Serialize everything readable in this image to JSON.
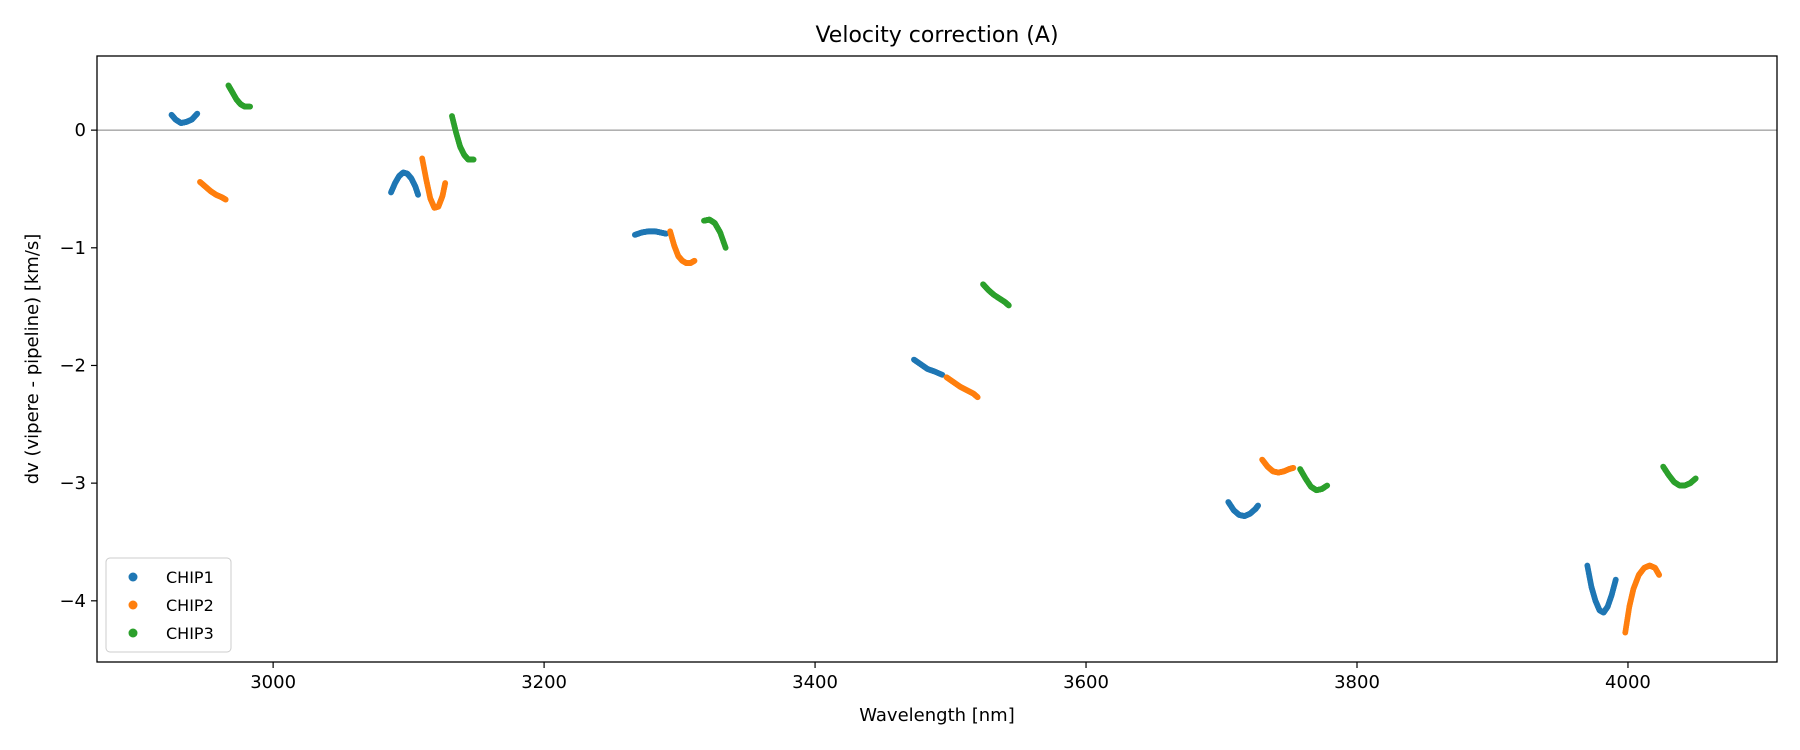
{
  "chart_data": {
    "type": "scatter",
    "title": "Velocity correction (A)",
    "xlabel": "Wavelength [nm]",
    "ylabel": "dv (vipere - pipeline) [km/s]",
    "xlim": [
      2870,
      4110
    ],
    "ylim": [
      -4.52,
      0.63
    ],
    "xticks": [
      3000,
      3200,
      3400,
      3600,
      3800,
      4000
    ],
    "yticks": [
      0,
      -1,
      -2,
      -3,
      -4
    ],
    "xtick_labels": [
      "3000",
      "3200",
      "3400",
      "3600",
      "3800",
      "4000"
    ],
    "ytick_labels": [
      "0",
      "−1",
      "−2",
      "−3",
      "−4"
    ],
    "reference_line_y": 0,
    "legend_position": "lower-left",
    "series": [
      {
        "name": "CHIP1",
        "color": "#1f77b4",
        "segments": [
          {
            "x": [
              2925,
              2928,
              2932,
              2936,
              2940,
              2944
            ],
            "y": [
              0.13,
              0.09,
              0.06,
              0.07,
              0.09,
              0.14
            ]
          },
          {
            "x": [
              3087,
              3090,
              3093,
              3096,
              3099,
              3102,
              3105,
              3107
            ],
            "y": [
              -0.53,
              -0.45,
              -0.39,
              -0.36,
              -0.37,
              -0.41,
              -0.48,
              -0.55
            ]
          },
          {
            "x": [
              3267,
              3272,
              3277,
              3282,
              3286,
              3290
            ],
            "y": [
              -0.89,
              -0.87,
              -0.86,
              -0.86,
              -0.87,
              -0.88
            ]
          },
          {
            "x": [
              3473,
              3478,
              3483,
              3488,
              3494
            ],
            "y": [
              -1.95,
              -1.99,
              -2.03,
              -2.05,
              -2.08
            ]
          },
          {
            "x": [
              3705,
              3709,
              3713,
              3717,
              3721,
              3725,
              3727
            ],
            "y": [
              -3.16,
              -3.23,
              -3.27,
              -3.28,
              -3.26,
              -3.22,
              -3.19
            ]
          },
          {
            "x": [
              3970,
              3973,
              3976,
              3979,
              3982,
              3985,
              3988,
              3991
            ],
            "y": [
              -3.7,
              -3.88,
              -4.0,
              -4.08,
              -4.1,
              -4.05,
              -3.95,
              -3.82
            ]
          }
        ]
      },
      {
        "name": "CHIP2",
        "color": "#ff7f0e",
        "segments": [
          {
            "x": [
              2946,
              2950,
              2954,
              2958,
              2962,
              2965
            ],
            "y": [
              -0.44,
              -0.48,
              -0.52,
              -0.55,
              -0.57,
              -0.59
            ]
          },
          {
            "x": [
              3110,
              3113,
              3116,
              3119,
              3122,
              3125,
              3127
            ],
            "y": [
              -0.24,
              -0.42,
              -0.58,
              -0.66,
              -0.65,
              -0.56,
              -0.45
            ]
          },
          {
            "x": [
              3293,
              3296,
              3299,
              3302,
              3305,
              3308,
              3311
            ],
            "y": [
              -0.86,
              -0.98,
              -1.07,
              -1.11,
              -1.13,
              -1.13,
              -1.11
            ]
          },
          {
            "x": [
              3497,
              3502,
              3507,
              3512,
              3517,
              3520
            ],
            "y": [
              -2.1,
              -2.14,
              -2.18,
              -2.21,
              -2.24,
              -2.27
            ]
          },
          {
            "x": [
              3730,
              3734,
              3738,
              3742,
              3746,
              3750,
              3753
            ],
            "y": [
              -2.8,
              -2.86,
              -2.9,
              -2.91,
              -2.9,
              -2.88,
              -2.87
            ]
          },
          {
            "x": [
              3998,
              4001,
              4004,
              4008,
              4012,
              4016,
              4020,
              4023
            ],
            "y": [
              -4.27,
              -4.05,
              -3.9,
              -3.78,
              -3.72,
              -3.7,
              -3.72,
              -3.78
            ]
          }
        ]
      },
      {
        "name": "CHIP3",
        "color": "#2ca02c",
        "segments": [
          {
            "x": [
              2967,
              2970,
              2973,
              2976,
              2979,
              2983
            ],
            "y": [
              0.38,
              0.32,
              0.26,
              0.22,
              0.2,
              0.2
            ]
          },
          {
            "x": [
              3132,
              3135,
              3138,
              3141,
              3144,
              3148
            ],
            "y": [
              0.12,
              -0.02,
              -0.14,
              -0.21,
              -0.25,
              -0.25
            ]
          },
          {
            "x": [
              3318,
              3322,
              3326,
              3330,
              3334
            ],
            "y": [
              -0.77,
              -0.76,
              -0.79,
              -0.87,
              -1.0
            ]
          },
          {
            "x": [
              3524,
              3528,
              3532,
              3536,
              3540,
              3543
            ],
            "y": [
              -1.31,
              -1.36,
              -1.4,
              -1.43,
              -1.46,
              -1.49
            ]
          },
          {
            "x": [
              3758,
              3762,
              3766,
              3770,
              3774,
              3778
            ],
            "y": [
              -2.88,
              -2.96,
              -3.03,
              -3.06,
              -3.05,
              -3.02
            ]
          },
          {
            "x": [
              4026,
              4030,
              4034,
              4038,
              4042,
              4046,
              4050
            ],
            "y": [
              -2.86,
              -2.93,
              -2.99,
              -3.02,
              -3.02,
              -3.0,
              -2.96
            ]
          }
        ]
      }
    ]
  }
}
